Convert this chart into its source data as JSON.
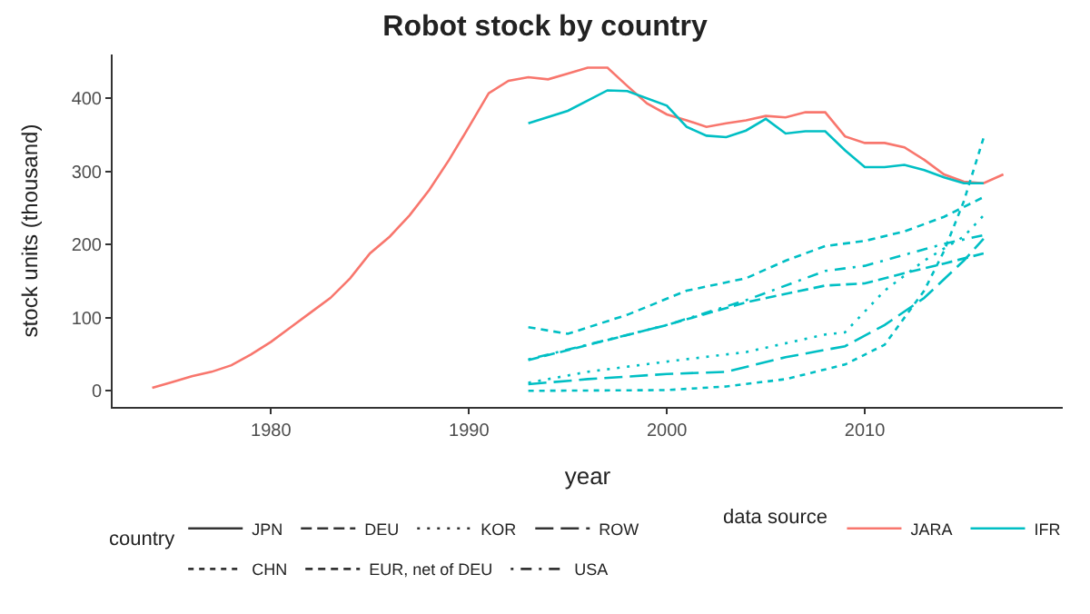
{
  "chart_data": {
    "type": "line",
    "title": "Robot stock by country",
    "xlabel": "year",
    "ylabel": "stock units (thousand)",
    "annotations": [
      "country",
      "JPN",
      "DEU",
      "KOR",
      "ROW",
      "CHN",
      "EUR, net of DEU",
      "USA",
      "data source",
      "JARA",
      "IFR"
    ],
    "xlim": [
      1972,
      2020
    ],
    "xticks": [
      1980,
      1990,
      2000,
      2010
    ],
    "ylim": [
      -22,
      460
    ],
    "yticks": [
      0,
      100,
      200,
      300,
      400
    ],
    "series": [
      {
        "color": "#f8766d",
        "line_style": "solid",
        "x": [
          1974,
          1975,
          1976,
          1977,
          1978,
          1979,
          1980,
          1981,
          1982,
          1983,
          1984,
          1985,
          1986,
          1987,
          1988,
          1989,
          1990,
          1991,
          1992,
          1993,
          1994,
          1995,
          1996,
          1997,
          1998,
          1999,
          2000,
          2001,
          2002,
          2003,
          2004,
          2005,
          2006,
          2007,
          2008,
          2009,
          2010,
          2011,
          2012,
          2013,
          2014,
          2015,
          2016,
          2017
        ],
        "values": [
          4,
          12,
          20,
          26,
          35,
          50,
          67,
          87,
          107,
          127,
          154,
          188,
          211,
          240,
          275,
          316,
          361,
          407,
          424,
          429,
          426,
          434,
          442,
          442,
          417,
          393,
          378,
          370,
          361,
          366,
          370,
          376,
          374,
          381,
          381,
          348,
          339,
          339,
          333,
          316,
          296,
          286,
          284,
          296
        ]
      },
      {
        "color": "#00bfc4",
        "line_style": "solid",
        "x": [
          1993,
          1995,
          1997,
          1998,
          2000,
          2001,
          2002,
          2003,
          2004,
          2005,
          2006,
          2007,
          2008,
          2009,
          2010,
          2011,
          2012,
          2013,
          2014,
          2015,
          2016
        ],
        "values": [
          366,
          383,
          411,
          410,
          390,
          361,
          349,
          347,
          356,
          372,
          352,
          355,
          355,
          329,
          306,
          306,
          309,
          302,
          292,
          284,
          284
        ]
      },
      {
        "color": "#00bfc4",
        "line_style": "dashdot",
        "x": [
          1993,
          2000,
          2004,
          2008,
          2010,
          2012,
          2014,
          2016
        ],
        "values": [
          42,
          90,
          121,
          144,
          147,
          161,
          174,
          188
        ]
      },
      {
        "color": "#00bfc4",
        "line_style": "finedotted",
        "x": [
          1993,
          1996,
          2000,
          2004,
          2008,
          2009,
          2011,
          2013,
          2015,
          2016
        ],
        "values": [
          11,
          26,
          40,
          53,
          77,
          80,
          137,
          178,
          211,
          240
        ]
      },
      {
        "color": "#00bfc4",
        "line_style": "longdash",
        "x": [
          1993,
          1996,
          2000,
          2003,
          2006,
          2009,
          2011,
          2013,
          2015,
          2016
        ],
        "values": [
          9,
          16,
          23,
          26,
          46,
          61,
          90,
          127,
          178,
          208
        ]
      },
      {
        "color": "#00bfc4",
        "line_style": "dotted",
        "x": [
          1993,
          2000,
          2003,
          2006,
          2009,
          2011,
          2013,
          2014,
          2015,
          2016
        ],
        "values": [
          0,
          1,
          6,
          16,
          36,
          63,
          137,
          191,
          259,
          346
        ]
      },
      {
        "color": "#00bfc4",
        "line_style": "dashed",
        "x": [
          1993,
          1995,
          1998,
          2001,
          2004,
          2006,
          2008,
          2010,
          2012,
          2014,
          2016
        ],
        "values": [
          87,
          78,
          104,
          137,
          154,
          178,
          198,
          205,
          218,
          238,
          265
        ]
      },
      {
        "color": "#00bfc4",
        "line_style": "dotdash",
        "x": [
          1993,
          2000,
          2004,
          2008,
          2010,
          2014,
          2016
        ],
        "values": [
          43,
          90,
          124,
          164,
          171,
          201,
          213
        ]
      }
    ]
  }
}
